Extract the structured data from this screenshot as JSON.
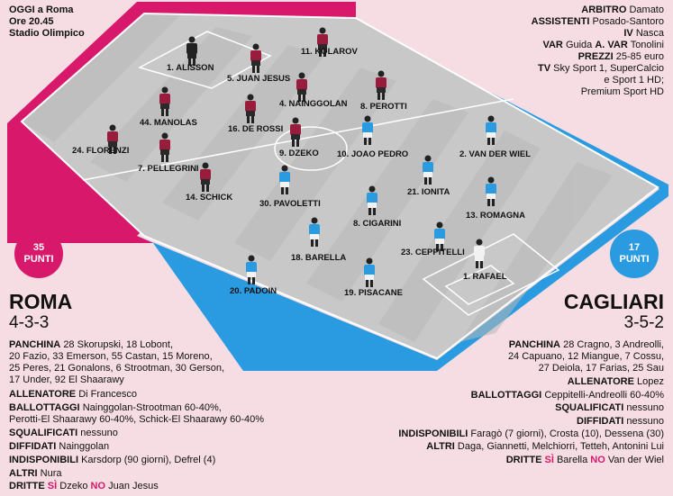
{
  "match": {
    "line1": "OGGI a Roma",
    "line2": "Ore 20.45",
    "line3": "Stadio Olimpico"
  },
  "officials": {
    "arbitro_label": "ARBITRO",
    "arbitro": "Damato",
    "assistenti_label": "ASSISTENTI",
    "assistenti": "Posado-Santoro",
    "iv_label": "IV",
    "iv": "Nasca",
    "var_label": "VAR",
    "var": "Guida",
    "avar_label": "A. VAR",
    "avar": "Tonolini",
    "prezzi_label": "PREZZI",
    "prezzi": "25-85 euro",
    "tv_label": "TV",
    "tv1": "Sky Sport 1, SuperCalcio",
    "tv2": "e Sport 1 HD;",
    "tv3": "Premium Sport HD"
  },
  "roma": {
    "points": "35",
    "points_label": "PUNTI",
    "name": "ROMA",
    "formation": "4-3-3",
    "color": "#d8196b",
    "players": [
      "1. ALISSON",
      "11. KOLAROV",
      "5. JUAN JESUS",
      "4. NAINGGOLAN",
      "8. PEROTTI",
      "44. MANOLAS",
      "16. DE ROSSI",
      "24. FLORENZI",
      "7. PELLEGRINI",
      "9. DZEKO",
      "14. SCHICK"
    ],
    "panchina_label": "PANCHINA",
    "panchina1": "28 Skorupski, 18 Lobont,",
    "panchina2": "20 Fazio, 33 Emerson, 55 Castan, 15 Moreno,",
    "panchina3": "25 Peres, 21 Gonalons, 6 Strootman, 30 Gerson,",
    "panchina4": "17 Under, 92 El Shaarawy",
    "allenatore_label": "ALLENATORE",
    "allenatore": "Di Francesco",
    "ballottaggi_label": "BALLOTTAGGI",
    "ballottaggi1": "Nainggolan-Strootman 60-40%,",
    "ballottaggi2": "Perotti-El Shaarawy 60-40%, Schick-El Shaarawy 60-40%",
    "squalificati_label": "SQUALIFICATI",
    "squalificati": "nessuno",
    "diffidati_label": "DIFFIDATI",
    "diffidati": "Nainggolan",
    "indisponibili_label": "INDISPONIBILI",
    "indisponibili": "Karsdorp (90 giorni), Defrel (4)",
    "altri_label": "ALTRI",
    "altri": "Nura",
    "dritte_label": "DRITTE",
    "si_label": "SÌ",
    "si": "Dzeko",
    "no_label": "NO",
    "no": "Juan Jesus"
  },
  "cagliari": {
    "points": "17",
    "points_label": "PUNTI",
    "name": "CAGLIARI",
    "formation": "3-5-2",
    "color": "#2a9be0",
    "players": [
      "10. JOAO PEDRO",
      "2. VAN DER WIEL",
      "30. PAVOLETTI",
      "21. IONITA",
      "8. CIGARINI",
      "13. ROMAGNA",
      "18. BARELLA",
      "23. CEPPITELLI",
      "20. PADOIN",
      "19. PISACANE",
      "1. RAFAEL"
    ],
    "panchina_label": "PANCHINA",
    "panchina1": "28 Cragno, 3 Andreolli,",
    "panchina2": "24 Capuano, 12 Miangue, 7 Cossu,",
    "panchina3": "27 Deiola, 17 Farias, 25 Sau",
    "allenatore_label": "ALLENATORE",
    "allenatore": "Lopez",
    "ballottaggi_label": "BALLOTTAGGI",
    "ballottaggi": "Ceppitelli-Andreolli 60-40%",
    "squalificati_label": "SQUALIFICATI",
    "squalificati": "nessuno",
    "diffidati_label": "DIFFIDATI",
    "diffidati": "nessuno",
    "indisponibili_label": "INDISPONIBILI",
    "indisponibili": "Faragò (7 giorni), Crosta (10), Dessena (30)",
    "altri_label": "ALTRI",
    "altri": "Daga, Giannetti, Melchiorri, Tetteh, Antonini Lui",
    "dritte_label": "DRITTE",
    "si_label": "SÌ",
    "si": "Barella",
    "no_label": "NO",
    "no": "Van der Wiel"
  }
}
